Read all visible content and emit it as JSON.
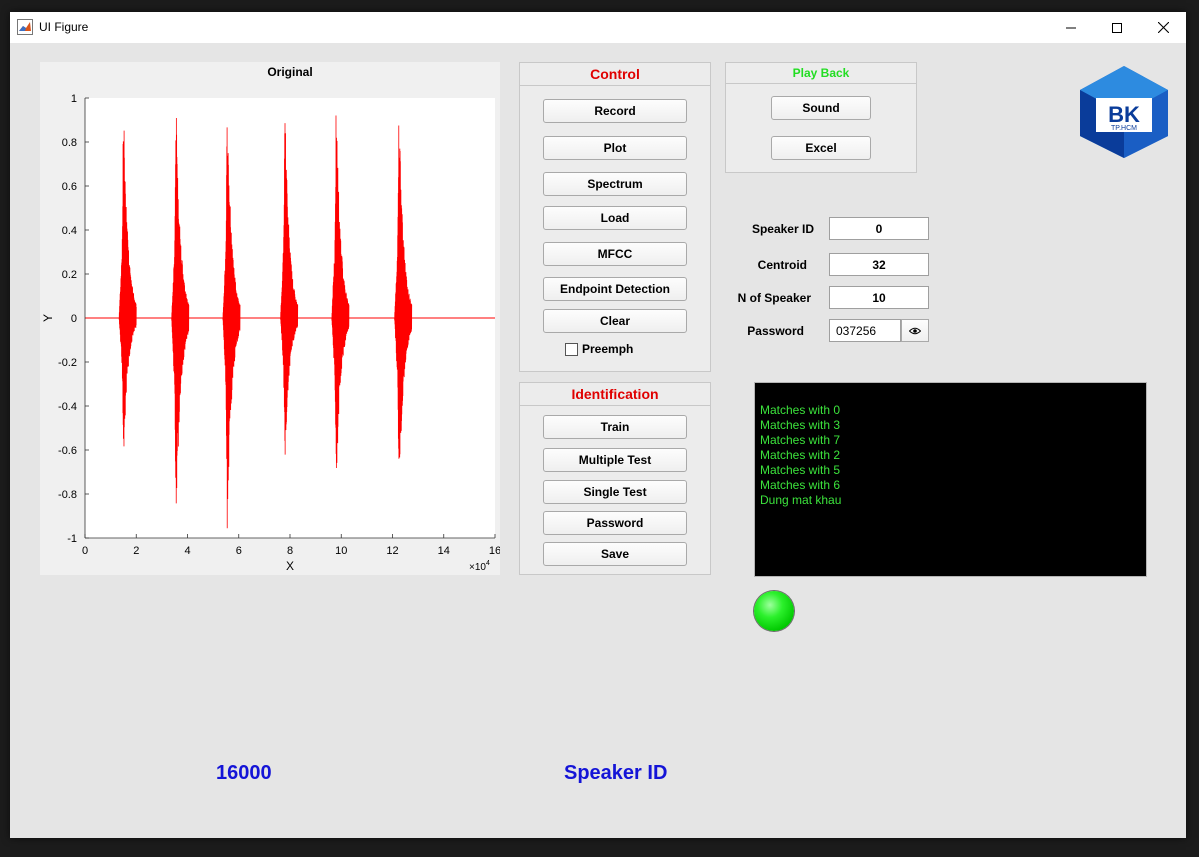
{
  "window": {
    "title": "UI Figure"
  },
  "plot": {
    "title": "Original",
    "xlabel": "X",
    "ylabel": "Y",
    "x_multiplier": "×10",
    "x_multiplier_exp": "4"
  },
  "chart_data": {
    "type": "line",
    "title": "Original",
    "xlabel": "X",
    "ylabel": "Y",
    "xlim": [
      0,
      16
    ],
    "ylim": [
      -1,
      1
    ],
    "x_ticks": [
      "0",
      "2",
      "4",
      "6",
      "8",
      "10",
      "12",
      "14",
      "16"
    ],
    "y_ticks": [
      "1",
      "0.8",
      "0.6",
      "0.4",
      "0.2",
      "0",
      "-0.2",
      "-0.4",
      "-0.6",
      "-0.8",
      "-1"
    ],
    "x_scale_note": "x10^4",
    "series_color": "#ff0000",
    "bursts": [
      {
        "center": 1.45,
        "peak": 1.0,
        "trough": -0.66
      },
      {
        "center": 3.5,
        "peak": 1.0,
        "trough": -0.99
      },
      {
        "center": 5.5,
        "peak": 0.98,
        "trough": -0.98
      },
      {
        "center": 7.75,
        "peak": 0.98,
        "trough": -0.69
      },
      {
        "center": 9.75,
        "peak": 0.99,
        "trough": -0.81
      },
      {
        "center": 12.2,
        "peak": 0.99,
        "trough": -0.89
      }
    ]
  },
  "control": {
    "title": "Control",
    "buttons": [
      "Record",
      "Plot",
      "Spectrum",
      "Load",
      "MFCC",
      "Endpoint Detection",
      "Clear"
    ],
    "preemph_label": "Preemph"
  },
  "identification": {
    "title": "Identification",
    "buttons": [
      "Train",
      "Multiple Test",
      "Single Test",
      "Password",
      "Save"
    ]
  },
  "playback": {
    "title": "Play Back",
    "buttons": [
      "Sound",
      "Excel"
    ]
  },
  "fields": {
    "speaker_id": {
      "label": "Speaker ID",
      "value": "0"
    },
    "centroid": {
      "label": "Centroid",
      "value": "32"
    },
    "n_speaker": {
      "label": "N of Speaker",
      "value": "10"
    },
    "password": {
      "label": "Password",
      "value": "037256"
    }
  },
  "logo": {
    "text": "BK",
    "subtext": "TP.HCM"
  },
  "console_lines": [
    "Matches with 0",
    "Matches with 3",
    "Matches with 7",
    "Matches with 2",
    "Matches with 5",
    "Matches with 6",
    "Dung mat khau"
  ],
  "bottom": {
    "sample_rate": "16000",
    "speaker_label": "Speaker ID"
  },
  "colors": {
    "control_title": "#e00000",
    "playback_title": "#22dd22",
    "label_blue": "#1414d7",
    "console_text": "#3ce33c",
    "lamp": "#00e000"
  }
}
